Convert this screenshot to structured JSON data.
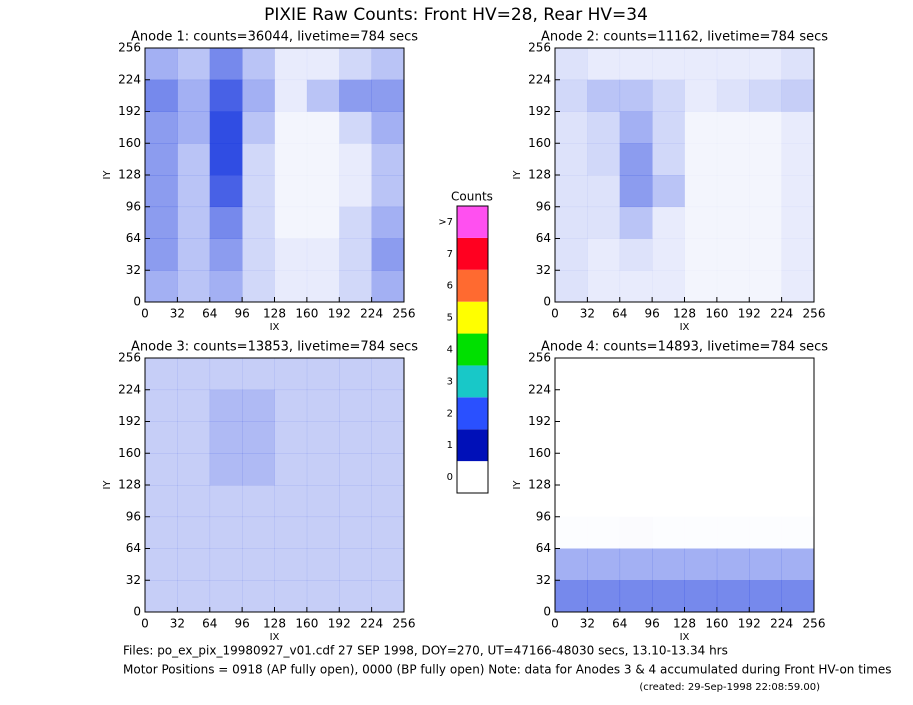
{
  "title": "PIXIE Raw Counts:  Front HV=28, Rear HV=34",
  "chart_data": [
    {
      "type": "heatmap",
      "title": "Anode 1: counts=36044, livetime=784 secs",
      "xlabel": "IX",
      "ylabel": "IY",
      "xlim": [
        0,
        256
      ],
      "ylim": [
        0,
        256
      ],
      "xticks": [
        0,
        32,
        64,
        96,
        128,
        160,
        192,
        224,
        256
      ],
      "yticks": [
        0,
        32,
        64,
        96,
        128,
        160,
        192,
        224,
        256
      ],
      "color": "#1a3ae0",
      "z": [
        [
          0.4,
          0.3,
          0.6,
          0.3,
          0.1,
          0.1,
          0.2,
          0.3
        ],
        [
          0.6,
          0.4,
          0.8,
          0.4,
          0.1,
          0.3,
          0.5,
          0.5
        ],
        [
          0.5,
          0.4,
          0.9,
          0.3,
          0.05,
          0.05,
          0.2,
          0.4
        ],
        [
          0.5,
          0.3,
          0.9,
          0.2,
          0.05,
          0.05,
          0.1,
          0.3
        ],
        [
          0.5,
          0.3,
          0.8,
          0.2,
          0.05,
          0.05,
          0.1,
          0.3
        ],
        [
          0.5,
          0.3,
          0.6,
          0.2,
          0.05,
          0.05,
          0.2,
          0.4
        ],
        [
          0.5,
          0.3,
          0.5,
          0.2,
          0.1,
          0.1,
          0.2,
          0.5
        ],
        [
          0.4,
          0.3,
          0.4,
          0.2,
          0.1,
          0.1,
          0.2,
          0.4
        ]
      ]
    },
    {
      "type": "heatmap",
      "title": "Anode 2: counts=11162, livetime=784 secs",
      "xlabel": "IX",
      "ylabel": "IY",
      "xlim": [
        0,
        256
      ],
      "ylim": [
        0,
        256
      ],
      "xticks": [
        0,
        32,
        64,
        96,
        128,
        160,
        192,
        224,
        256
      ],
      "yticks": [
        0,
        32,
        64,
        96,
        128,
        160,
        192,
        224,
        256
      ],
      "color": "#1a3ae0",
      "z": [
        [
          0.15,
          0.1,
          0.1,
          0.1,
          0.1,
          0.1,
          0.1,
          0.15
        ],
        [
          0.2,
          0.3,
          0.3,
          0.2,
          0.1,
          0.15,
          0.2,
          0.25
        ],
        [
          0.15,
          0.2,
          0.4,
          0.2,
          0.05,
          0.05,
          0.05,
          0.1
        ],
        [
          0.15,
          0.2,
          0.5,
          0.2,
          0.05,
          0.05,
          0.05,
          0.1
        ],
        [
          0.15,
          0.15,
          0.5,
          0.3,
          0.05,
          0.05,
          0.05,
          0.1
        ],
        [
          0.15,
          0.15,
          0.3,
          0.1,
          0.05,
          0.05,
          0.05,
          0.1
        ],
        [
          0.15,
          0.1,
          0.15,
          0.1,
          0.05,
          0.05,
          0.05,
          0.1
        ],
        [
          0.15,
          0.1,
          0.1,
          0.1,
          0.05,
          0.05,
          0.05,
          0.1
        ]
      ]
    },
    {
      "type": "heatmap",
      "title": "Anode 3: counts=13853, livetime=784 secs",
      "xlabel": "IX",
      "ylabel": "IY",
      "xlim": [
        0,
        256
      ],
      "ylim": [
        0,
        256
      ],
      "xticks": [
        0,
        32,
        64,
        96,
        128,
        160,
        192,
        224,
        256
      ],
      "yticks": [
        0,
        32,
        64,
        96,
        128,
        160,
        192,
        224,
        256
      ],
      "color": "#1a3ae0",
      "z": [
        [
          0.25,
          0.25,
          0.25,
          0.25,
          0.25,
          0.25,
          0.25,
          0.25
        ],
        [
          0.25,
          0.25,
          0.35,
          0.35,
          0.25,
          0.25,
          0.25,
          0.25
        ],
        [
          0.25,
          0.25,
          0.35,
          0.35,
          0.25,
          0.25,
          0.25,
          0.25
        ],
        [
          0.25,
          0.25,
          0.35,
          0.35,
          0.25,
          0.25,
          0.25,
          0.25
        ],
        [
          0.25,
          0.25,
          0.25,
          0.25,
          0.25,
          0.25,
          0.25,
          0.25
        ],
        [
          0.25,
          0.25,
          0.25,
          0.25,
          0.25,
          0.25,
          0.25,
          0.25
        ],
        [
          0.25,
          0.25,
          0.25,
          0.25,
          0.25,
          0.25,
          0.25,
          0.25
        ],
        [
          0.25,
          0.25,
          0.25,
          0.25,
          0.25,
          0.25,
          0.25,
          0.25
        ]
      ]
    },
    {
      "type": "heatmap",
      "title": "Anode 4: counts=14893, livetime=784 secs",
      "xlabel": "IX",
      "ylabel": "IY",
      "xlim": [
        0,
        256
      ],
      "ylim": [
        0,
        256
      ],
      "xticks": [
        0,
        32,
        64,
        96,
        128,
        160,
        192,
        224,
        256
      ],
      "yticks": [
        0,
        32,
        64,
        96,
        128,
        160,
        192,
        224,
        256
      ],
      "color": "#1a3ae0",
      "z": [
        [
          0,
          0,
          0,
          0,
          0,
          0,
          0,
          0
        ],
        [
          0,
          0,
          0,
          0,
          0,
          0,
          0,
          0
        ],
        [
          0,
          0,
          0,
          0,
          0,
          0,
          0,
          0
        ],
        [
          0,
          0,
          0,
          0,
          0,
          0,
          0,
          0
        ],
        [
          0,
          0,
          0,
          0,
          0,
          0,
          0,
          0
        ],
        [
          0.01,
          0.01,
          0.02,
          0.01,
          0.01,
          0.01,
          0.01,
          0.01
        ],
        [
          0.4,
          0.4,
          0.4,
          0.4,
          0.4,
          0.4,
          0.4,
          0.4
        ],
        [
          0.6,
          0.6,
          0.6,
          0.6,
          0.6,
          0.6,
          0.6,
          0.6
        ]
      ]
    }
  ],
  "colorbar": {
    "title": "Counts",
    "levels": [
      {
        "label": "0",
        "color": "#ffffff"
      },
      {
        "label": "1",
        "color": "#0010b8"
      },
      {
        "label": "2",
        "color": "#2a50ff"
      },
      {
        "label": "3",
        "color": "#18c8c8"
      },
      {
        "label": "4",
        "color": "#00e000"
      },
      {
        "label": "5",
        "color": "#ffff00"
      },
      {
        "label": "6",
        "color": "#ff6a30"
      },
      {
        "label": "7",
        "color": "#ff0020"
      },
      {
        "label": ">7",
        "color": "#ff50f0"
      }
    ]
  },
  "footer": [
    "Files: po_ex_pix_19980927_v01.cdf    27 SEP 1998, DOY=270, UT=47166-48030 secs, 13.10-13.34 hrs",
    "Motor Positions = 0918 (AP fully open), 0000 (BP fully open)    Note: data for Anodes 3 & 4 accumulated during Front HV-on times",
    "(created: 29-Sep-1998 22:08:59.00)"
  ]
}
